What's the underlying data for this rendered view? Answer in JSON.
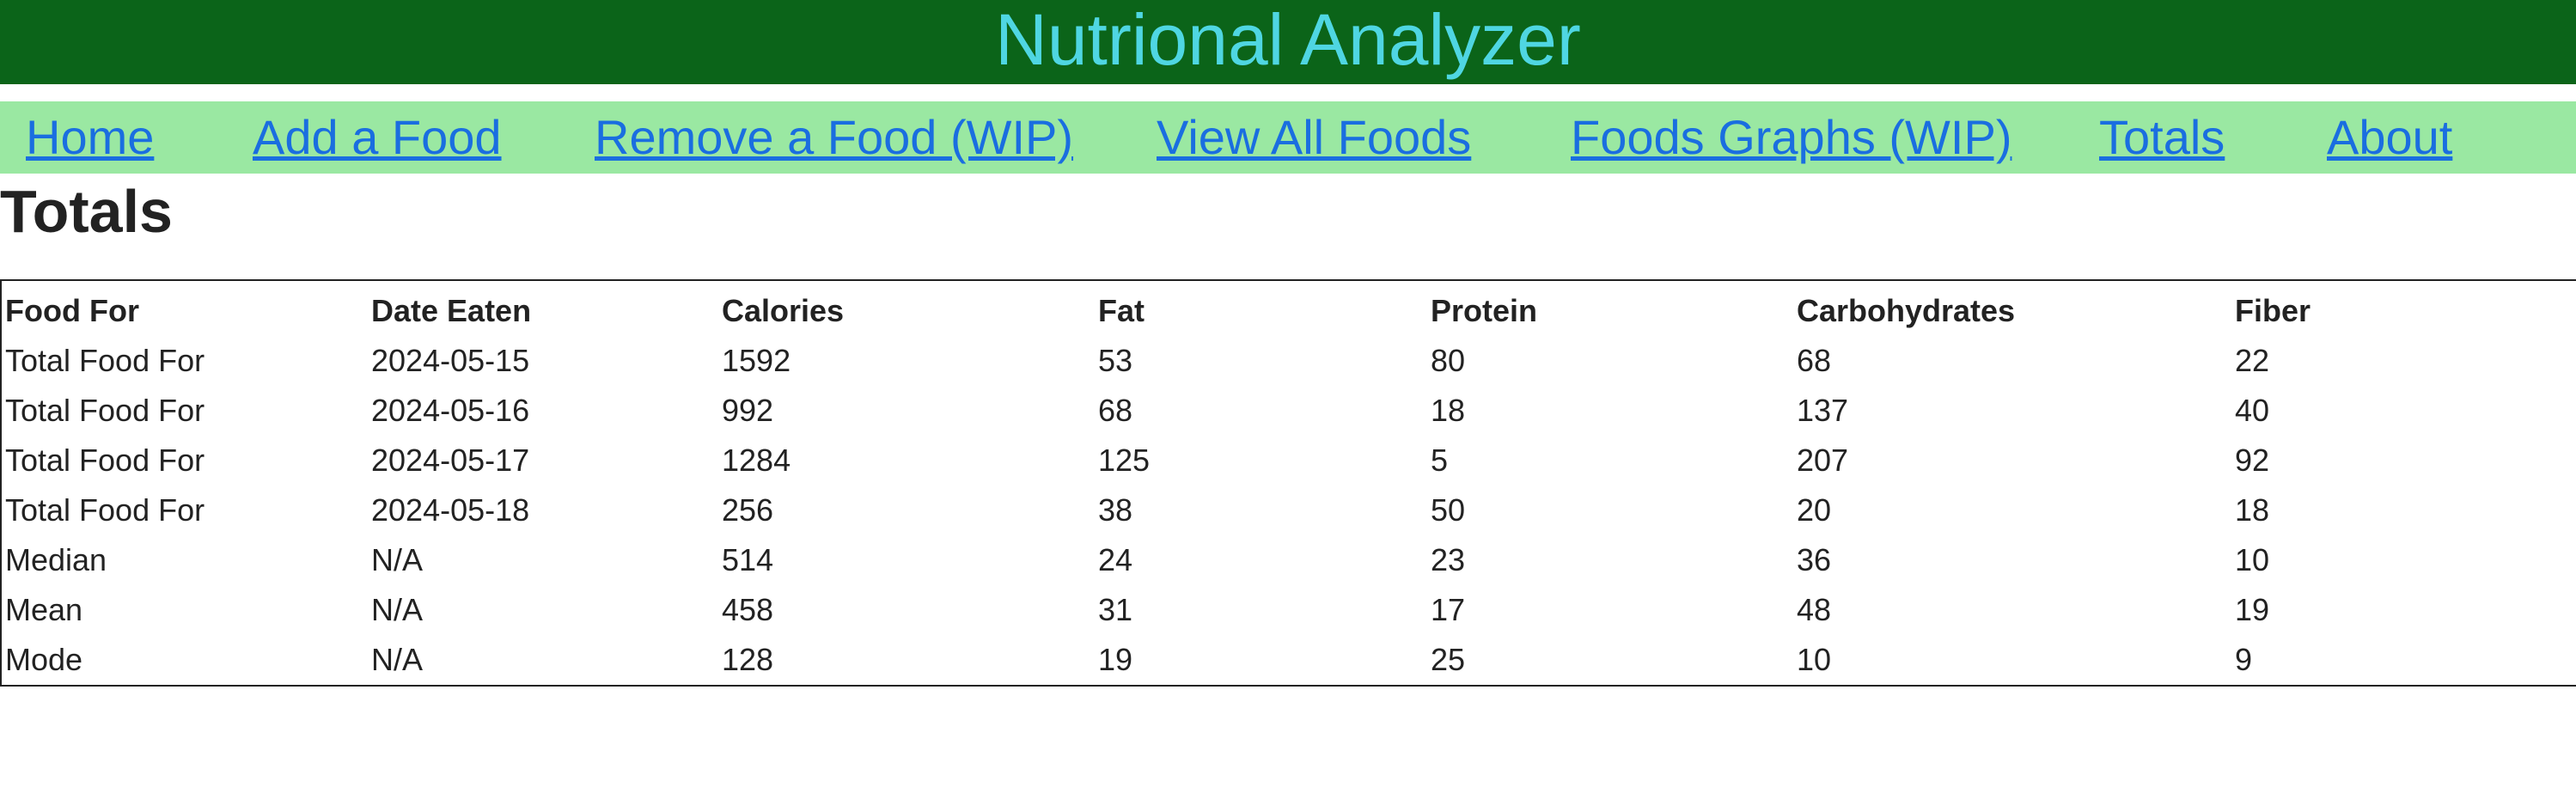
{
  "header": {
    "title": "Nutrional Analyzer"
  },
  "nav": {
    "items": [
      {
        "label": "Home"
      },
      {
        "label": "Add a Food"
      },
      {
        "label": "Remove a Food (WIP)"
      },
      {
        "label": "View All Foods"
      },
      {
        "label": "Foods Graphs (WIP)"
      },
      {
        "label": "Totals"
      },
      {
        "label": "About"
      }
    ]
  },
  "page": {
    "title": "Totals"
  },
  "table": {
    "columns": [
      "Food For",
      "Date Eaten",
      "Calories",
      "Fat",
      "Protein",
      "Carbohydrates",
      "Fiber"
    ],
    "rows": [
      [
        "Total Food For",
        "2024-05-15",
        "1592",
        "53",
        "80",
        "68",
        "22"
      ],
      [
        "Total Food For",
        "2024-05-16",
        "992",
        "68",
        "18",
        "137",
        "40"
      ],
      [
        "Total Food For",
        "2024-05-17",
        "1284",
        "125",
        "5",
        "207",
        "92"
      ],
      [
        "Total Food For",
        "2024-05-18",
        "256",
        "38",
        "50",
        "20",
        "18"
      ],
      [
        "Median",
        "N/A",
        "514",
        "24",
        "23",
        "36",
        "10"
      ],
      [
        "Mean",
        "N/A",
        "458",
        "31",
        "17",
        "48",
        "19"
      ],
      [
        "Mode",
        "N/A",
        "128",
        "19",
        "25",
        "10",
        "9"
      ]
    ]
  },
  "colors": {
    "header_bg": "#0b6419",
    "title_text": "#4fd6e2",
    "nav_bg": "#9ae8a2",
    "link": "#1a6ee0"
  }
}
